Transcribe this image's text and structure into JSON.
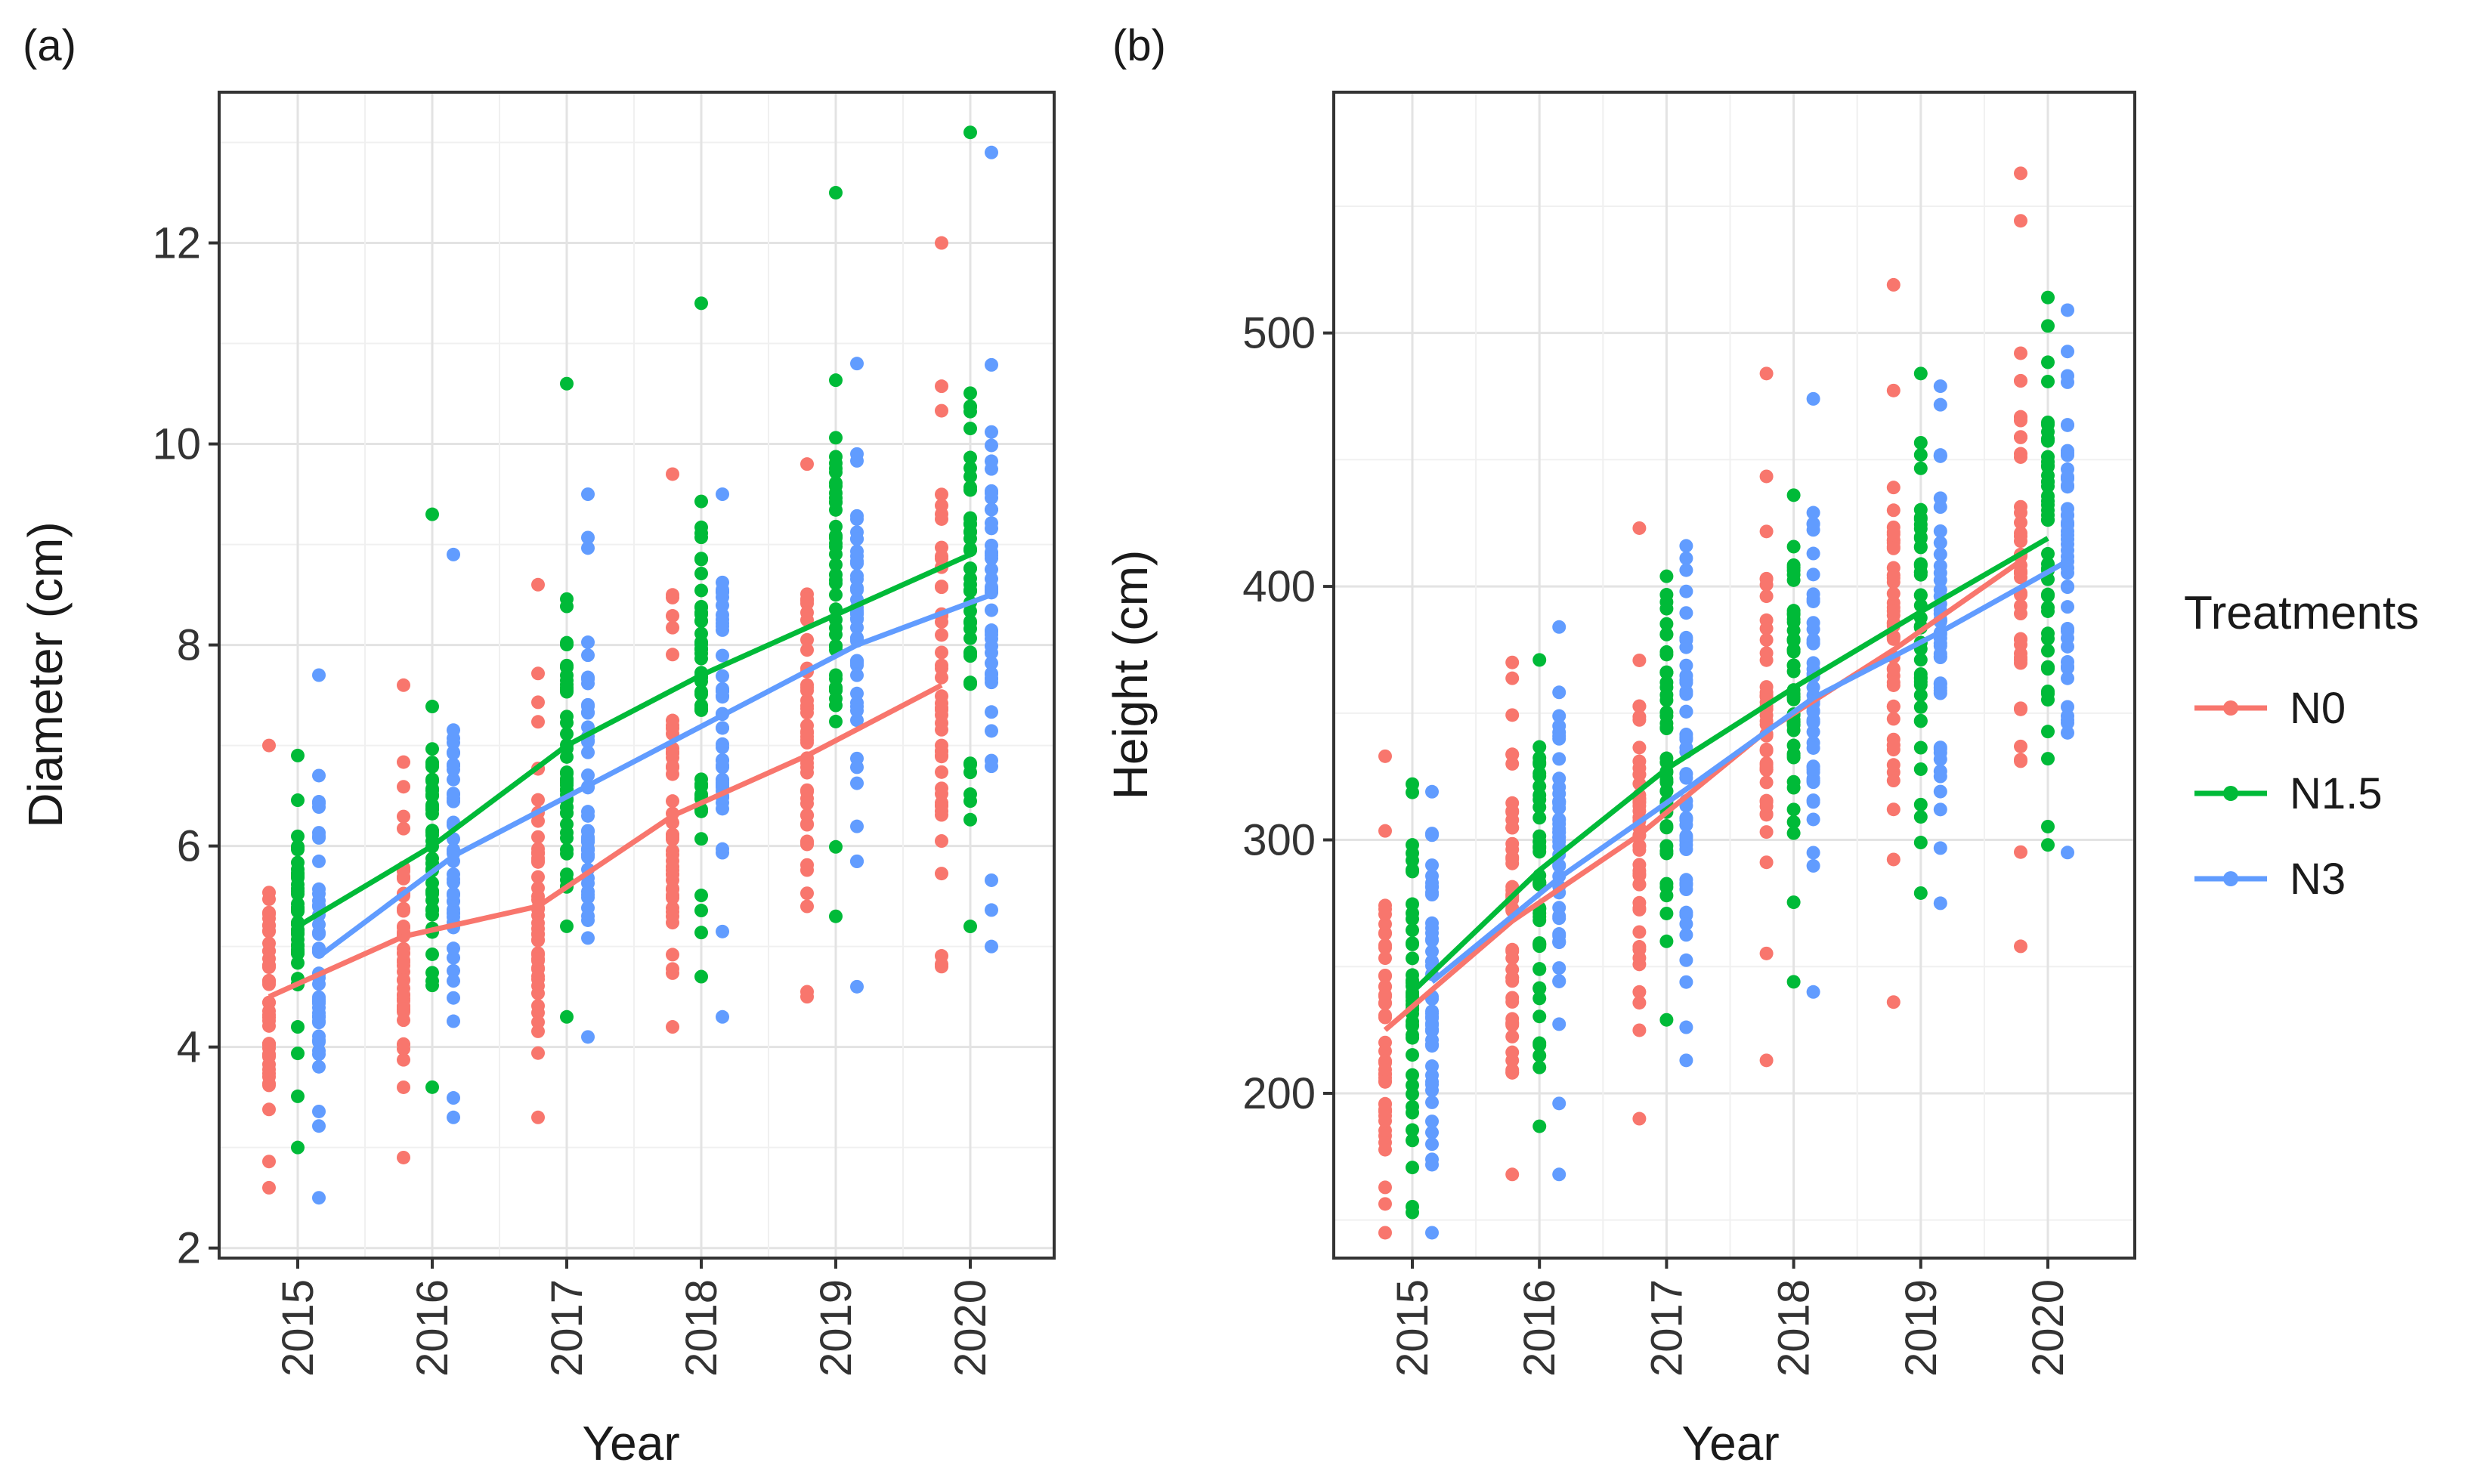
{
  "legend": {
    "title": "Treatments",
    "entries": [
      {
        "name": "N0",
        "color": "#F8766D"
      },
      {
        "name": "N1.5",
        "color": "#00BA38"
      },
      {
        "name": "N3",
        "color": "#619CFF"
      }
    ]
  },
  "chart_data": [
    {
      "type": "scatter",
      "panel_label": "(a)",
      "xlabel": "Year",
      "ylabel": "Diameter (cm)",
      "categories": [
        "2015",
        "2016",
        "2017",
        "2018",
        "2019",
        "2020"
      ],
      "ylim": [
        1.9,
        13.5
      ],
      "yticks": [
        2,
        4,
        6,
        8,
        10,
        12
      ],
      "grid": true,
      "series": [
        {
          "name": "N0",
          "color": "#F8766D",
          "mean": [
            4.5,
            5.1,
            5.4,
            6.3,
            6.9,
            7.6
          ],
          "range": [
            [
              2.6,
              7.0
            ],
            [
              2.9,
              7.6
            ],
            [
              3.3,
              8.6
            ],
            [
              4.2,
              9.7
            ],
            [
              4.5,
              9.8
            ],
            [
              4.8,
              12.0
            ]
          ],
          "spread": [
            0.65,
            0.75,
            0.85,
            1.0,
            1.05,
            1.2
          ]
        },
        {
          "name": "N1.5",
          "color": "#00BA38",
          "mean": [
            5.2,
            6.0,
            7.0,
            7.7,
            8.3,
            8.9
          ],
          "range": [
            [
              3.0,
              6.9
            ],
            [
              3.6,
              9.3
            ],
            [
              4.3,
              10.6
            ],
            [
              4.7,
              11.4
            ],
            [
              5.3,
              12.5
            ],
            [
              5.2,
              13.1
            ]
          ],
          "spread": [
            0.6,
            0.75,
            0.85,
            0.95,
            1.0,
            1.2
          ]
        },
        {
          "name": "N3",
          "color": "#619CFF",
          "mean": [
            4.9,
            5.9,
            6.6,
            7.3,
            8.0,
            8.5
          ],
          "range": [
            [
              2.5,
              7.7
            ],
            [
              3.3,
              8.9
            ],
            [
              4.1,
              9.5
            ],
            [
              4.3,
              9.5
            ],
            [
              4.6,
              10.8
            ],
            [
              5.0,
              12.9
            ]
          ],
          "spread": [
            0.7,
            0.8,
            0.85,
            0.95,
            1.05,
            1.25
          ]
        }
      ]
    },
    {
      "type": "scatter",
      "panel_label": "(b)",
      "xlabel": "Year",
      "ylabel": "Height (cm)",
      "categories": [
        "2015",
        "2016",
        "2017",
        "2018",
        "2019",
        "2020"
      ],
      "ylim": [
        135,
        595
      ],
      "yticks": [
        200,
        300,
        400,
        500
      ],
      "grid": true,
      "series": [
        {
          "name": "N0",
          "color": "#F8766D",
          "mean": [
            225,
            268,
            302,
            343,
            375,
            410
          ],
          "range": [
            [
              145,
              333
            ],
            [
              168,
              370
            ],
            [
              190,
              423
            ],
            [
              213,
              484
            ],
            [
              236,
              519
            ],
            [
              258,
              563
            ]
          ],
          "spread": [
            38,
            40,
            40,
            45,
            45,
            48
          ]
        },
        {
          "name": "N1.5",
          "color": "#00BA38",
          "mean": [
            240,
            288,
            328,
            360,
            390,
            419
          ],
          "range": [
            [
              153,
              322
            ],
            [
              187,
              371
            ],
            [
              229,
              404
            ],
            [
              244,
              436
            ],
            [
              279,
              484
            ],
            [
              298,
              514
            ]
          ],
          "spread": [
            35,
            38,
            38,
            40,
            42,
            45
          ]
        },
        {
          "name": "N3",
          "color": "#619CFF",
          "mean": [
            244,
            285,
            320,
            356,
            382,
            410
          ],
          "range": [
            [
              145,
              319
            ],
            [
              168,
              384
            ],
            [
              213,
              416
            ],
            [
              240,
              474
            ],
            [
              275,
              479
            ],
            [
              295,
              509
            ]
          ],
          "spread": [
            36,
            38,
            40,
            42,
            44,
            46
          ]
        }
      ]
    }
  ]
}
